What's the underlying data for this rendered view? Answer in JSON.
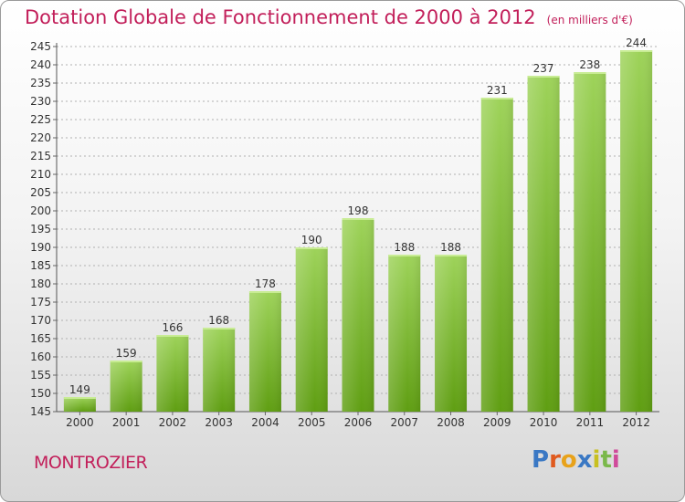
{
  "title": "Dotation Globale de Fonctionnement de 2000 à 2012",
  "unit_note": "(en milliers d'€)",
  "commune": "MONTROZIER",
  "logo": {
    "letters": [
      "P",
      "r",
      "o",
      "x",
      "i",
      "t",
      "i"
    ],
    "colors": [
      "#3a78c4",
      "#e05a1e",
      "#e8a21a",
      "#3a78c4",
      "#c8c020",
      "#7ab84a",
      "#d04a9a"
    ]
  },
  "colors": {
    "bar_top": "#9ed35a",
    "bar_bottom": "#5f9e12",
    "title": "#c21f5a",
    "grid": "#b0b0b0"
  },
  "chart_data": {
    "type": "bar",
    "categories": [
      "2000",
      "2001",
      "2002",
      "2003",
      "2004",
      "2005",
      "2006",
      "2007",
      "2008",
      "2009",
      "2010",
      "2011",
      "2012"
    ],
    "values": [
      149,
      159,
      166,
      168,
      178,
      190,
      198,
      188,
      188,
      231,
      237,
      238,
      244
    ],
    "ylim": [
      145,
      245
    ],
    "yticks": [
      145,
      150,
      155,
      160,
      165,
      170,
      175,
      180,
      185,
      190,
      195,
      200,
      205,
      210,
      215,
      220,
      225,
      230,
      235,
      240,
      245
    ],
    "grid": true,
    "data_labels": true
  }
}
